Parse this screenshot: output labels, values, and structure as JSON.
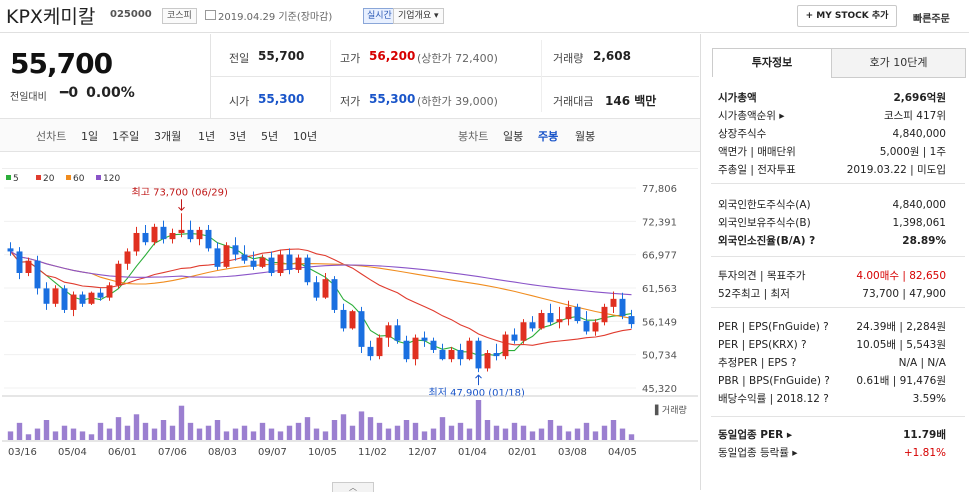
{
  "header": {
    "company": "KPX케미칼",
    "code": "025000",
    "market_badge": "코스피",
    "date": "2019.04.29 기준(장마감)",
    "live_badge": "실시간",
    "info_dropdown": "기업개요 ▾",
    "mystock": "+ MY STOCK 추가",
    "quick_order": "빠른주문"
  },
  "summary": {
    "price": "55,700",
    "change_label": "전일대비",
    "change_value": "━0",
    "change_pct": "0.00%",
    "prev_close_label": "전일",
    "prev_close": "55,700",
    "high_label": "고가",
    "high": "56,200",
    "upper_limit": "(상한가 72,400)",
    "volume_label": "거래량",
    "volume": "2,608",
    "open_label": "시가",
    "open": "55,300",
    "low_label": "저가",
    "low": "55,300",
    "lower_limit": "(하한가 39,000)",
    "amount_label": "거래대금",
    "amount": "146 백만"
  },
  "chart_tabs": {
    "line_label": "선차트",
    "line_tabs": [
      "1일",
      "1주일",
      "3개월",
      "1년",
      "3년",
      "5년",
      "10년"
    ],
    "candle_label": "봉차트",
    "candle_tabs": [
      "일봉",
      "주봉",
      "월봉"
    ],
    "selected": "주봉"
  },
  "chart_data": {
    "type": "candlestick",
    "legend": [
      {
        "name": "5",
        "color": "#2cae3a"
      },
      {
        "name": "20",
        "color": "#e03c2f"
      },
      {
        "name": "60",
        "color": "#f08c1e"
      },
      {
        "name": "120",
        "color": "#8a54c8"
      }
    ],
    "y_ticks": [
      77806,
      72391,
      66977,
      61563,
      56149,
      50734,
      45320
    ],
    "x_labels": [
      "03/16",
      "05/04",
      "06/01",
      "07/06",
      "08/03",
      "09/07",
      "10/05",
      "11/02",
      "12/07",
      "01/04",
      "02/01",
      "03/08",
      "04/05"
    ],
    "high_annotation": "최고 73,700 (06/29)",
    "low_annotation": "최저 47,900 (01/18)",
    "volume_label": "거래량",
    "ylim": [
      45320,
      77806
    ],
    "candles": [
      [
        68000,
        69000,
        66800,
        67500
      ],
      [
        67500,
        68200,
        63000,
        64000
      ],
      [
        64000,
        66500,
        63500,
        66000
      ],
      [
        66000,
        66800,
        60500,
        61500
      ],
      [
        61500,
        62500,
        58000,
        59000
      ],
      [
        59000,
        62000,
        58500,
        61500
      ],
      [
        61500,
        62000,
        57500,
        58000
      ],
      [
        58000,
        61000,
        57000,
        60500
      ],
      [
        60500,
        61000,
        58500,
        59000
      ],
      [
        59000,
        61000,
        58800,
        60800
      ],
      [
        60800,
        61500,
        59500,
        60000
      ],
      [
        60000,
        62500,
        59500,
        62000
      ],
      [
        62000,
        66000,
        61500,
        65500
      ],
      [
        65500,
        68000,
        64500,
        67500
      ],
      [
        67500,
        71500,
        66800,
        70500
      ],
      [
        70500,
        71800,
        68500,
        69000
      ],
      [
        69000,
        72000,
        68500,
        71500
      ],
      [
        71500,
        72500,
        68800,
        69500
      ],
      [
        69500,
        71200,
        68800,
        70500
      ],
      [
        70500,
        73700,
        69800,
        71000
      ],
      [
        71000,
        72500,
        69000,
        69500
      ],
      [
        69500,
        71500,
        68500,
        71000
      ],
      [
        71000,
        71800,
        67500,
        68000
      ],
      [
        68000,
        69000,
        64500,
        65000
      ],
      [
        65000,
        69000,
        64800,
        68500
      ],
      [
        68500,
        69800,
        66000,
        67000
      ],
      [
        67000,
        68500,
        65500,
        66000
      ],
      [
        66000,
        67500,
        64500,
        65000
      ],
      [
        65000,
        67000,
        64800,
        66500
      ],
      [
        66500,
        67500,
        63500,
        64000
      ],
      [
        64000,
        67800,
        63500,
        67000
      ],
      [
        67000,
        68000,
        63800,
        64500
      ],
      [
        64500,
        67000,
        64000,
        66500
      ],
      [
        66500,
        67000,
        62000,
        62500
      ],
      [
        62500,
        63500,
        59500,
        60000
      ],
      [
        60000,
        64000,
        59800,
        63000
      ],
      [
        63000,
        63500,
        57500,
        58000
      ],
      [
        58000,
        59000,
        54500,
        55000
      ],
      [
        55000,
        58000,
        54800,
        57800
      ],
      [
        57800,
        58500,
        51000,
        52000
      ],
      [
        52000,
        53000,
        49800,
        50500
      ],
      [
        50500,
        54000,
        50000,
        53500
      ],
      [
        53500,
        56000,
        52000,
        55500
      ],
      [
        55500,
        56500,
        52500,
        53000
      ],
      [
        53000,
        53800,
        49500,
        50000
      ],
      [
        50000,
        54000,
        49000,
        53500
      ],
      [
        53500,
        54500,
        52000,
        53000
      ],
      [
        53000,
        53500,
        51000,
        51500
      ],
      [
        51500,
        52500,
        49800,
        50000
      ],
      [
        50000,
        52000,
        49500,
        51500
      ],
      [
        51500,
        52500,
        49000,
        50000
      ],
      [
        50000,
        53500,
        49800,
        53000
      ],
      [
        53000,
        53500,
        47900,
        48500
      ],
      [
        48500,
        51500,
        48000,
        51000
      ],
      [
        51000,
        52500,
        49800,
        50500
      ],
      [
        50500,
        54500,
        50000,
        54000
      ],
      [
        54000,
        55000,
        52500,
        53000
      ],
      [
        53000,
        56500,
        52500,
        56000
      ],
      [
        56000,
        57000,
        54500,
        55000
      ],
      [
        55000,
        58000,
        54800,
        57500
      ],
      [
        57500,
        59000,
        55500,
        56000
      ],
      [
        56000,
        58500,
        55000,
        56500
      ],
      [
        56500,
        59500,
        55500,
        58500
      ],
      [
        58500,
        59000,
        55800,
        56200
      ],
      [
        56200,
        57800,
        54000,
        54500
      ],
      [
        54500,
        56500,
        53800,
        56000
      ],
      [
        56000,
        59000,
        55500,
        58500
      ],
      [
        58500,
        61000,
        57500,
        59800
      ],
      [
        59800,
        60800,
        56500,
        57000
      ],
      [
        57000,
        58000,
        55000,
        55700
      ]
    ],
    "volumes": [
      3,
      6,
      2,
      4,
      7,
      3,
      5,
      4,
      3,
      2,
      6,
      4,
      8,
      5,
      9,
      6,
      4,
      7,
      5,
      12,
      6,
      4,
      5,
      7,
      3,
      4,
      5,
      3,
      6,
      4,
      3,
      5,
      6,
      8,
      4,
      3,
      7,
      9,
      5,
      10,
      8,
      6,
      4,
      5,
      7,
      6,
      3,
      4,
      8,
      5,
      6,
      4,
      14,
      7,
      5,
      4,
      6,
      5,
      3,
      4,
      7,
      5,
      3,
      4,
      6,
      3,
      5,
      7,
      4,
      2
    ]
  },
  "right_panel": {
    "tabs": [
      "투자정보",
      "호가 10단계"
    ],
    "rows": [
      {
        "k": "시가총액",
        "v": "2,696억원",
        "bold": true
      },
      {
        "k": "시가총액순위 ▸",
        "v": "코스피 417위"
      },
      {
        "k": "상장주식수",
        "v": "4,840,000"
      },
      {
        "k": "액면가 | 매매단위",
        "v": "5,000원 | 1주"
      },
      {
        "k": "주총일 | 전자투표",
        "v": "2019.03.22 | 미도입"
      },
      {
        "k": "외국인한도주식수(A)",
        "v": "4,840,000"
      },
      {
        "k": "외국인보유주식수(B)",
        "v": "1,398,061"
      },
      {
        "k": "외국인소진율(B/A) ?",
        "v": "28.89%",
        "bold": true
      },
      {
        "k": "투자의견 | 목표주가",
        "v": "4.00매수 | 82,650",
        "red": true
      },
      {
        "k": "52주최고 | 최저",
        "v": "73,700 | 47,900"
      },
      {
        "k": "PER | EPS(FnGuide) ?",
        "v": "24.39배 | 2,284원"
      },
      {
        "k": "PER | EPS(KRX) ?",
        "v": "10.05배 | 5,543원"
      },
      {
        "k": "추정PER | EPS ?",
        "v": "N/A | N/A"
      },
      {
        "k": "PBR | BPS(FnGuide) ?",
        "v": "0.61배 | 91,476원"
      },
      {
        "k": "배당수익률 | 2018.12 ?",
        "v": "3.59%"
      },
      {
        "k": "동일업종 PER ▸",
        "v": "11.79배",
        "bold": true
      },
      {
        "k": "동일업종 등락률 ▸",
        "v": "+1.81%",
        "red": true
      }
    ]
  }
}
